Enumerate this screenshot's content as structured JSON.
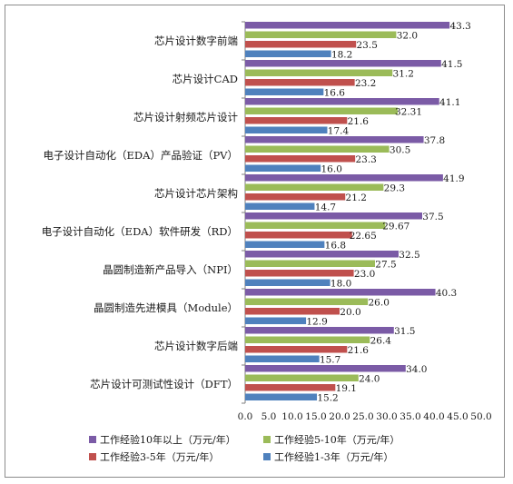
{
  "chart_data": {
    "type": "bar",
    "orientation": "horizontal",
    "title": "",
    "xlabel": "",
    "ylabel": "",
    "xlim": [
      0,
      50
    ],
    "x_ticks": [
      "0.0",
      "5.0",
      "10.0",
      "15.0",
      "20.0",
      "25.0",
      "30.0",
      "35.0",
      "40.0",
      "45.0",
      "50.0"
    ],
    "grid": false,
    "legend_position": "bottom",
    "categories": [
      "芯片设计数字前端",
      "芯片设计CAD",
      "芯片设计射频芯片设计",
      "电子设计自动化（EDA）产品验证（PV）",
      "芯片设计芯片架构",
      "电子设计自动化（EDA）软件研发（RD）",
      "晶圆制造新产品导入（NPI）",
      "晶圆制造先进模具（Module）",
      "芯片设计数字后端",
      "芯片设计可测试性设计（DFT）"
    ],
    "series": [
      {
        "name": "工作经验10年以上（万元/年）",
        "color": "#7b5ba6",
        "values": [
          43.3,
          41.5,
          41.1,
          37.8,
          41.9,
          37.5,
          32.5,
          40.3,
          31.5,
          34.0
        ],
        "labels": [
          "43.3",
          "41.5",
          "41.1",
          "37.8",
          "41.9",
          "37.5",
          "32.5",
          "40.3",
          "31.5",
          "34.0"
        ]
      },
      {
        "name": "工作经验5-10年（万元/年）",
        "color": "#9bbb59",
        "values": [
          32.0,
          31.2,
          32.31,
          30.5,
          29.3,
          29.67,
          27.5,
          26.0,
          26.4,
          24.0
        ],
        "labels": [
          "32.0",
          "31.2",
          "32.31",
          "30.5",
          "29.3",
          "29.67",
          "27.5",
          "26.0",
          "26.4",
          "24.0"
        ]
      },
      {
        "name": "工作经验3-5年（万元/年）",
        "color": "#c0504d",
        "values": [
          23.5,
          23.2,
          21.6,
          23.3,
          21.2,
          22.65,
          23.0,
          20.0,
          21.6,
          19.1
        ],
        "labels": [
          "23.5",
          "23.2",
          "21.6",
          "23.3",
          "21.2",
          "22.65",
          "23.0",
          "20.0",
          "21.6",
          "19.1"
        ]
      },
      {
        "name": "工作经验1-3年（万元/年）",
        "color": "#4f81bd",
        "values": [
          18.2,
          16.6,
          17.4,
          16.0,
          14.7,
          16.8,
          18.0,
          12.9,
          15.7,
          15.2
        ],
        "labels": [
          "18.2",
          "16.6",
          "17.4",
          "16.0",
          "14.7",
          "16.8",
          "18.0",
          "12.9",
          "15.7",
          "15.2"
        ]
      }
    ]
  }
}
